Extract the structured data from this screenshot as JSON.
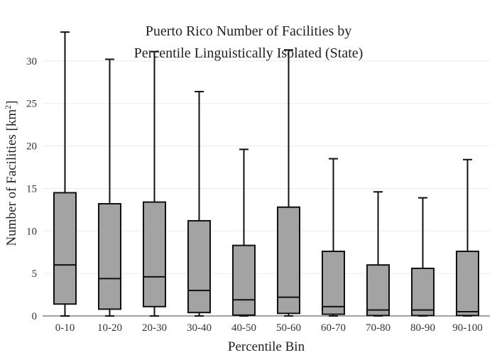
{
  "chart_data": {
    "type": "box",
    "title_line1": "Puerto Rico Number of Facilities by",
    "title_line2": "Percentile Linguistically Isolated (State)",
    "xlabel": "Percentile Bin",
    "ylabel": "Number of Facilities  [km",
    "ylabel_sup": "2",
    "ylabel_end": "]",
    "ylim": [
      0,
      33.5
    ],
    "yticks": [
      0,
      5,
      10,
      15,
      20,
      25,
      30
    ],
    "grid": true,
    "categories": [
      "0-10",
      "10-20",
      "20-30",
      "30-40",
      "40-50",
      "50-60",
      "60-70",
      "70-80",
      "80-90",
      "90-100"
    ],
    "boxes": [
      {
        "min": 0,
        "q1": 1.4,
        "median": 6.0,
        "q3": 14.5,
        "max": 33.4
      },
      {
        "min": 0,
        "q1": 0.8,
        "median": 4.4,
        "q3": 13.2,
        "max": 30.2
      },
      {
        "min": 0,
        "q1": 1.1,
        "median": 4.6,
        "q3": 13.4,
        "max": 31.1
      },
      {
        "min": 0,
        "q1": 0.4,
        "median": 3.0,
        "q3": 11.2,
        "max": 26.4
      },
      {
        "min": 0,
        "q1": 0.1,
        "median": 1.9,
        "q3": 8.3,
        "max": 19.6
      },
      {
        "min": 0,
        "q1": 0.3,
        "median": 2.2,
        "q3": 12.8,
        "max": 31.3
      },
      {
        "min": 0,
        "q1": 0.2,
        "median": 1.1,
        "q3": 7.6,
        "max": 18.5
      },
      {
        "min": 0,
        "q1": 0.05,
        "median": 0.7,
        "q3": 6.0,
        "max": 14.6
      },
      {
        "min": 0,
        "q1": 0.05,
        "median": 0.7,
        "q3": 5.6,
        "max": 13.9
      },
      {
        "min": 0,
        "q1": 0.05,
        "median": 0.5,
        "q3": 7.6,
        "max": 18.4
      }
    ]
  }
}
